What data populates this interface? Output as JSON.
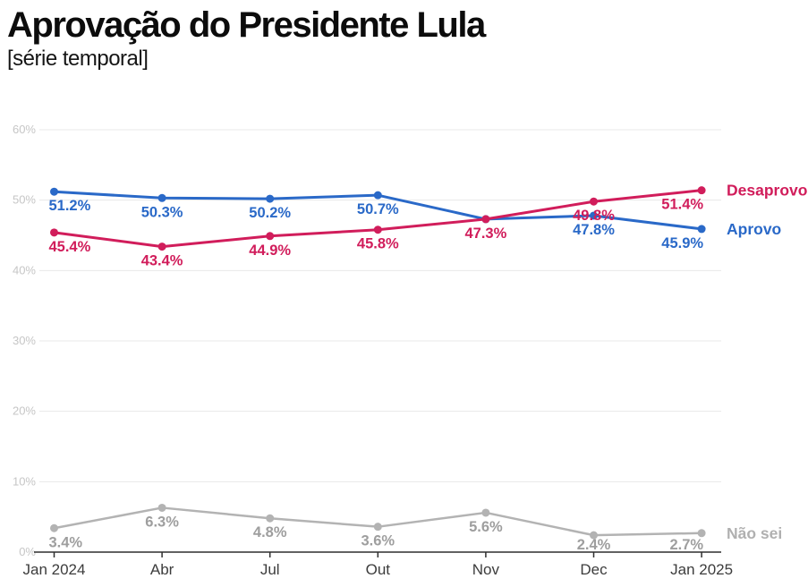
{
  "header": {
    "title": "Aprovação do Presidente Lula",
    "subtitle": "[série temporal]"
  },
  "chart_data": {
    "type": "line",
    "title": "Aprovação do Presidente Lula",
    "subtitle": "[série temporal]",
    "x_categories": [
      "Jan 2024",
      "Abr",
      "Jul",
      "Out",
      "Nov",
      "Dec",
      "Jan 2025"
    ],
    "ylim": [
      0,
      60
    ],
    "ytick_values": [
      0,
      10,
      20,
      30,
      40,
      50,
      60
    ],
    "ytick_labels": [
      "0%",
      "10%",
      "20%",
      "30%",
      "40%",
      "50%",
      "60%"
    ],
    "grid": true,
    "legend_position": "right-of-line-ends",
    "value_label_format": "one-decimal-percent",
    "series": [
      {
        "name": "Não sei",
        "color": "#b3b3b3",
        "label_color": "#9e9e9e",
        "legend_color": "#b0b0b0",
        "line_width": 2.5,
        "values": [
          3.4,
          6.3,
          4.8,
          3.6,
          5.6,
          2.4,
          2.7
        ],
        "point_labels": [
          "3.4%",
          "6.3%",
          "4.8%",
          "3.6%",
          "5.6%",
          "2.4%",
          "2.7%"
        ],
        "hide_label_at": []
      },
      {
        "name": "Aprovo",
        "color": "#2a69c8",
        "label_color": "#2a69c8",
        "legend_color": "#2a69c8",
        "line_width": 3,
        "values": [
          51.2,
          50.3,
          50.2,
          50.7,
          47.3,
          47.8,
          45.9
        ],
        "point_labels": [
          "51.2%",
          "50.3%",
          "50.2%",
          "50.7%",
          "47.3%",
          "47.8%",
          "45.9%"
        ],
        "hide_label_at": [
          4
        ]
      },
      {
        "name": "Desaprovo",
        "color": "#d11d5b",
        "label_color": "#d11d5b",
        "legend_color": "#d11d5b",
        "line_width": 3,
        "values": [
          45.4,
          43.4,
          44.9,
          45.8,
          47.3,
          49.8,
          51.4
        ],
        "point_labels": [
          "45.4%",
          "43.4%",
          "44.9%",
          "45.8%",
          "47.3%",
          "49.8%",
          "51.4%"
        ],
        "hide_label_at": []
      }
    ]
  }
}
